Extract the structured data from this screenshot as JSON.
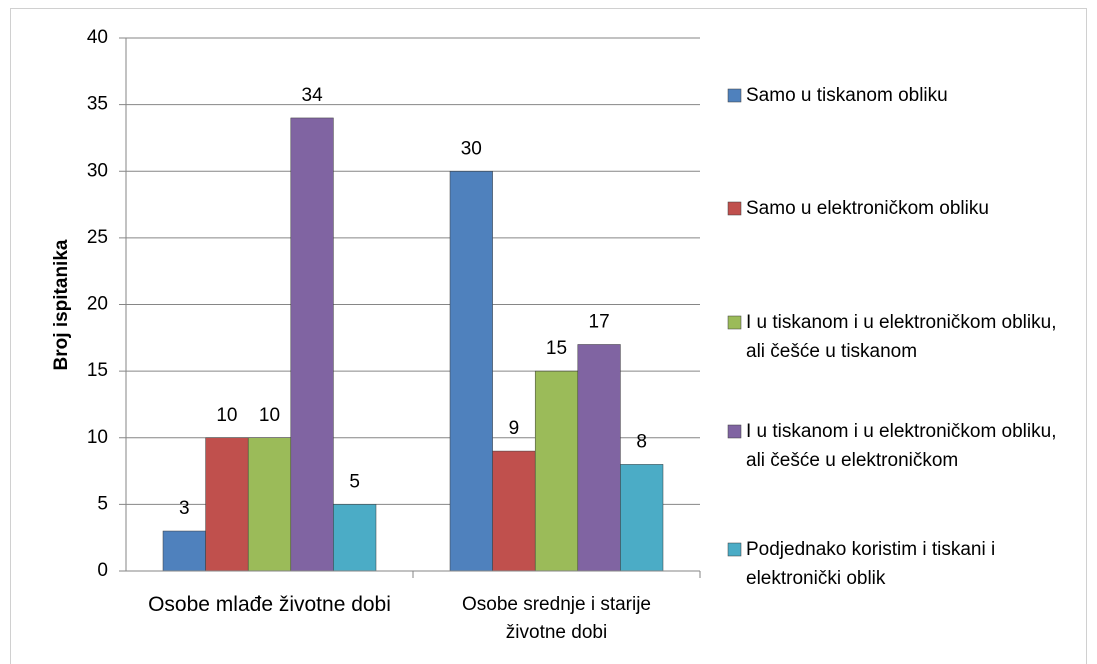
{
  "chart_data": {
    "type": "bar",
    "y_label": "Broj ispitanika",
    "categories": [
      "Osobe mlađe životne dobi",
      "Osobe srednje i starije životne dobi"
    ],
    "series": [
      {
        "name": "Samo u tiskanom obliku",
        "color": "#4f81bd",
        "values": [
          3,
          30
        ]
      },
      {
        "name": "Samo u elektroničkom obliku",
        "color": "#c0504d",
        "values": [
          10,
          9
        ]
      },
      {
        "name": "I u tiskanom i u elektroničkom obliku, ali češće u tiskanom",
        "color": "#9bbb59",
        "values": [
          10,
          15
        ]
      },
      {
        "name": "I u tiskanom i u elektroničkom obliku, ali češće u elektroničkom",
        "color": "#8064a2",
        "values": [
          34,
          17
        ]
      },
      {
        "name": "Podjednako koristim i tiskani i elektronički oblik",
        "color": "#4bacc6",
        "values": [
          5,
          8
        ]
      }
    ],
    "ylim": [
      0,
      40
    ],
    "yticks": [
      0,
      5,
      10,
      15,
      20,
      25,
      30,
      35,
      40
    ],
    "grid": true,
    "legend": "right"
  }
}
